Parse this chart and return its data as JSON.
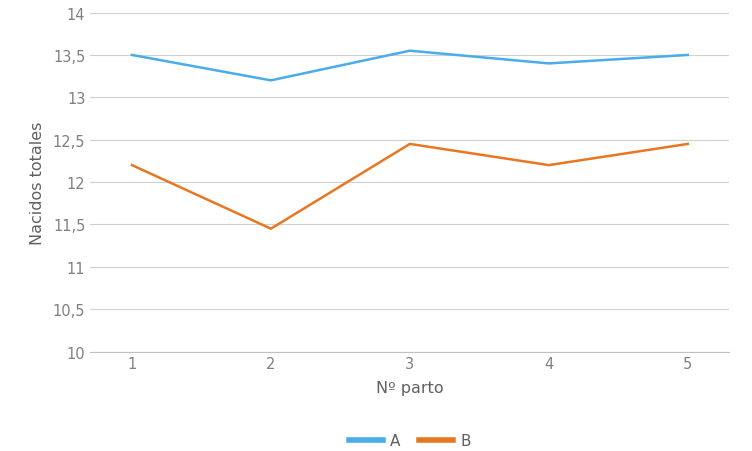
{
  "x": [
    1,
    2,
    3,
    4,
    5
  ],
  "series_A": [
    13.5,
    13.2,
    13.55,
    13.4,
    13.5
  ],
  "series_B": [
    12.2,
    11.45,
    12.45,
    12.2,
    12.45
  ],
  "color_A": "#4AACE8",
  "color_B": "#E87722",
  "xlabel": "Nº parto",
  "ylabel": "Nacidos totales",
  "ylim": [
    10,
    14
  ],
  "yticks": [
    10,
    10.5,
    11,
    11.5,
    12,
    12.5,
    13,
    13.5,
    14
  ],
  "ytick_labels": [
    "10",
    "10,5",
    "11",
    "11,5",
    "12",
    "12,5",
    "13",
    "13,5",
    "14"
  ],
  "xticks": [
    1,
    2,
    3,
    4,
    5
  ],
  "legend_labels": [
    "A",
    "B"
  ],
  "background_color": "#ffffff",
  "line_width": 1.8,
  "tick_color": "#808080",
  "grid_color": "#D0D0D0",
  "spine_color": "#C0C0C0",
  "label_color": "#606060",
  "legend_fontsize": 11,
  "axis_fontsize": 10.5
}
